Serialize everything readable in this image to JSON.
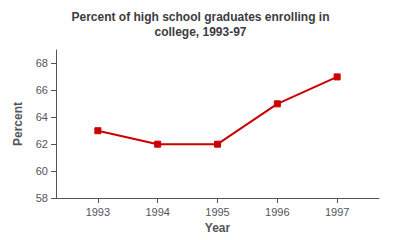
{
  "chart_data": {
    "type": "line",
    "title": "Percent of high school graduates enrolling in\ncollege, 1993-97",
    "xlabel": "Year",
    "ylabel": "Percent",
    "x": [
      1993,
      1994,
      1995,
      1996,
      1997
    ],
    "values": [
      63,
      62,
      62,
      65,
      67
    ],
    "color": "#cc0000",
    "marker": "square",
    "xlim": [
      1992.3,
      1997.7
    ],
    "xticks": [
      1993,
      1994,
      1995,
      1996,
      1997
    ],
    "ylim": [
      58,
      69
    ],
    "yticks": [
      58,
      60,
      62,
      64,
      66,
      68
    ],
    "grid": false
  }
}
